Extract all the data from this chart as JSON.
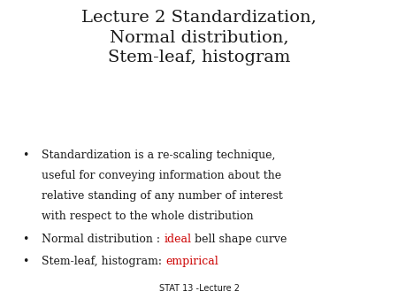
{
  "background_color": "#ffffff",
  "title_lines": [
    "Lecture 2 Standardization,",
    "Normal distribution,",
    "Stem-leaf, histogram"
  ],
  "title_fontsize": 14,
  "title_color": "#1a1a1a",
  "bullet_fontsize": 9.0,
  "bullet_color": "#1a1a1a",
  "red_color": "#cc0000",
  "bullet_char": "•",
  "bullet1_lines": [
    "Standardization is a re-scaling technique,",
    "useful for conveying information about the",
    "relative standing of any number of interest",
    "with respect to the whole distribution"
  ],
  "bullet2_parts": [
    {
      "text": "Normal distribution : ",
      "color": "#1a1a1a"
    },
    {
      "text": "ideal",
      "color": "#cc0000"
    },
    {
      "text": " bell shape curve",
      "color": "#1a1a1a"
    }
  ],
  "bullet3_parts": [
    {
      "text": "Stem-leaf, histogram: ",
      "color": "#1a1a1a"
    },
    {
      "text": "empirical",
      "color": "#cc0000"
    }
  ],
  "footer_text": "STAT 13 -Lecture 2",
  "footer_fontsize": 7
}
